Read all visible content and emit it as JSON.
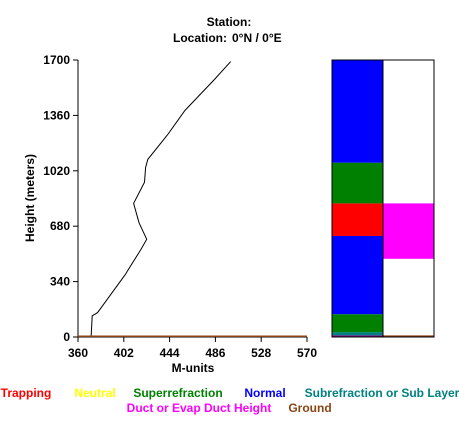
{
  "header": {
    "station_label": "Station:",
    "location_label": "Location:",
    "location_value": "0°N /   0°E"
  },
  "chart_data": {
    "type": "line",
    "xlabel": "M-units",
    "ylabel": "Height (meters)",
    "xlim": [
      360,
      570
    ],
    "ylim": [
      0,
      1700
    ],
    "x_ticks": [
      "360",
      "402",
      "444",
      "486",
      "528",
      "570"
    ],
    "y_ticks": [
      "0",
      "340",
      "680",
      "1020",
      "1360",
      "1700"
    ],
    "series": [
      {
        "color": "#000000",
        "points": [
          [
            372,
            0
          ],
          [
            373,
            130
          ],
          [
            378,
            150
          ],
          [
            390,
            260
          ],
          [
            403,
            380
          ],
          [
            418,
            540
          ],
          [
            423,
            600
          ],
          [
            416,
            700
          ],
          [
            411,
            820
          ],
          [
            421,
            950
          ],
          [
            422,
            1040
          ],
          [
            424,
            1090
          ],
          [
            442,
            1240
          ],
          [
            458,
            1390
          ],
          [
            485,
            1580
          ],
          [
            500,
            1690
          ]
        ]
      },
      {
        "color": "#8B4513",
        "points": [
          [
            360,
            5
          ],
          [
            570,
            5
          ]
        ]
      }
    ],
    "refractivity_columns": [
      {
        "segments": [
          {
            "from": 0,
            "to": 10,
            "class": "subrefraction",
            "color": "#800080"
          },
          {
            "from": 10,
            "to": 30,
            "class": "subrefraction",
            "color": "#008080"
          },
          {
            "from": 30,
            "to": 140,
            "class": "superrefraction",
            "color": "#008000"
          },
          {
            "from": 140,
            "to": 620,
            "class": "normal",
            "color": "#0000FF"
          },
          {
            "from": 620,
            "to": 820,
            "class": "trapping",
            "color": "#FF0000"
          },
          {
            "from": 820,
            "to": 1070,
            "class": "superrefraction",
            "color": "#008000"
          },
          {
            "from": 1070,
            "to": 1700,
            "class": "normal",
            "color": "#0000FF"
          }
        ]
      },
      {
        "segments": [
          {
            "from": 0,
            "to": 10,
            "class": "ground",
            "color": "#8B4513"
          },
          {
            "from": 480,
            "to": 820,
            "class": "duct",
            "color": "#FF00FF"
          }
        ]
      }
    ],
    "legend": [
      {
        "label": "Trapping",
        "color": "#FF0000"
      },
      {
        "label": "Neutral",
        "color": "#FFFF00"
      },
      {
        "label": "Superrefraction",
        "color": "#008000"
      },
      {
        "label": "Normal",
        "color": "#0000FF"
      },
      {
        "label": "Subrefraction or Sub Layer",
        "color": "#008080"
      },
      {
        "label": "Duct or Evap Duct Height",
        "color": "#FF00FF"
      },
      {
        "label": "Ground",
        "color": "#8B4513"
      }
    ]
  }
}
